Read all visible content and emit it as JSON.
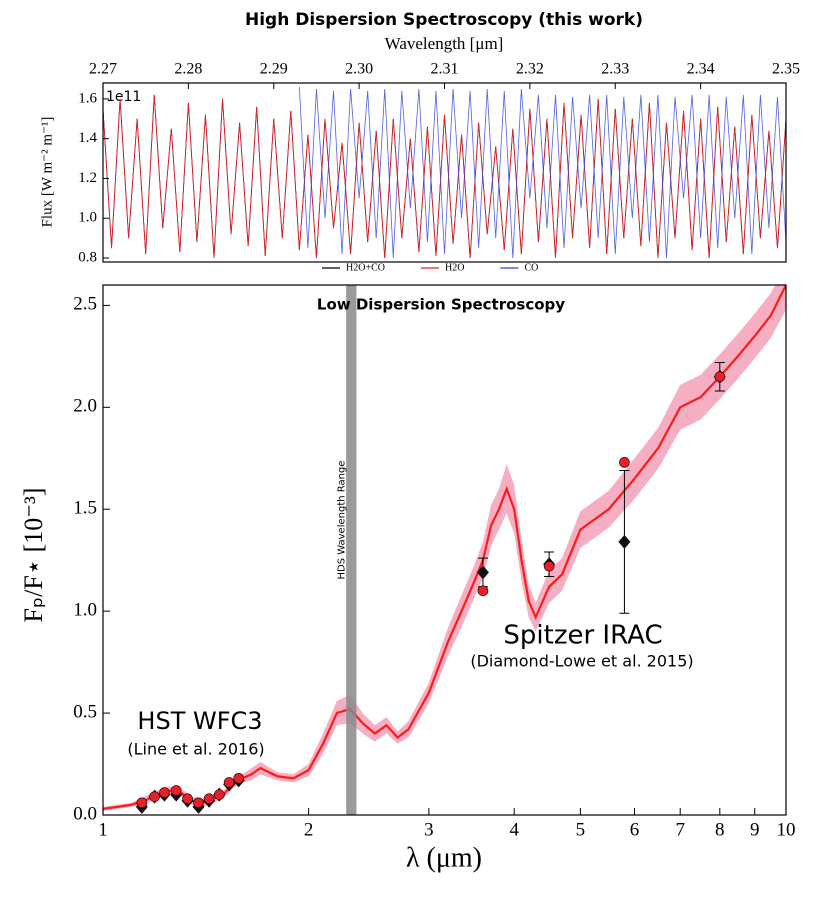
{
  "chart_data": [
    {
      "type": "line",
      "title": "High Dispersion Spectroscopy (this work)",
      "xlabel": "Wavelength [μm]",
      "ylabel": "Flux [W m⁻² m⁻¹]",
      "offset_label": "1e11",
      "xlim": [
        2.27,
        2.35
      ],
      "xticks": [
        2.27,
        2.28,
        2.29,
        {
          "value": 2.3,
          "label": "2.30"
        },
        2.31,
        2.32,
        2.33,
        2.34,
        2.35
      ],
      "ylim": [
        0.78,
        1.68
      ],
      "yticks": [
        0.8,
        {
          "value": 1.0,
          "label": "1.0"
        },
        1.2,
        1.4,
        1.6
      ],
      "x": [
        2.27,
        2.271,
        2.272,
        2.273,
        2.274,
        2.275,
        2.276,
        2.277,
        2.278,
        2.279,
        2.28,
        2.281,
        2.282,
        2.283,
        2.284,
        2.285,
        2.286,
        2.287,
        2.288,
        2.289,
        2.29,
        2.291,
        2.292,
        2.293,
        2.294,
        2.295,
        2.296,
        2.297,
        2.298,
        2.299,
        2.3,
        2.301,
        2.302,
        2.303,
        2.304,
        2.305,
        2.306,
        2.307,
        2.308,
        2.309,
        2.31,
        2.311,
        2.312,
        2.313,
        2.314,
        2.315,
        2.316,
        2.317,
        2.318,
        2.319,
        2.32,
        2.321,
        2.322,
        2.323,
        2.324,
        2.325,
        2.326,
        2.327,
        2.328,
        2.329,
        2.33,
        2.331,
        2.332,
        2.333,
        2.334,
        2.335,
        2.336,
        2.337,
        2.338,
        2.339,
        2.34,
        2.341,
        2.342,
        2.343,
        2.344,
        2.345,
        2.346,
        2.347,
        2.348,
        2.349,
        2.35
      ],
      "legend": "lower center",
      "series": [
        {
          "name": "H2O+CO",
          "color": "#000000",
          "values": [
            1.55,
            0.85,
            1.6,
            0.9,
            1.5,
            0.82,
            1.62,
            0.95,
            1.45,
            0.83,
            1.58,
            0.88,
            1.52,
            0.8,
            1.6,
            0.92,
            1.48,
            0.86,
            1.56,
            0.81,
            1.5,
            0.9,
            1.54,
            0.84,
            1.42,
            0.8,
            1.5,
            0.95,
            1.38,
            0.82,
            1.48,
            0.88,
            1.44,
            0.8,
            1.5,
            0.9,
            1.4,
            0.83,
            1.46,
            0.81,
            1.52,
            0.87,
            1.42,
            0.8,
            1.48,
            0.92,
            1.36,
            0.84,
            1.45,
            0.82,
            1.55,
            0.88,
            1.5,
            0.8,
            1.58,
            0.9,
            1.52,
            0.85,
            1.6,
            0.82,
            1.55,
            0.9,
            1.5,
            0.86,
            1.58,
            0.8,
            1.48,
            0.9,
            1.54,
            0.84,
            1.5,
            0.8,
            1.56,
            0.88,
            1.46,
            0.82,
            1.52,
            0.9,
            1.44,
            0.85,
            1.5
          ]
        },
        {
          "name": "H2O",
          "color": "#e8202a",
          "values": [
            1.55,
            0.85,
            1.6,
            0.9,
            1.5,
            0.82,
            1.62,
            0.95,
            1.45,
            0.83,
            1.58,
            0.88,
            1.52,
            0.8,
            1.6,
            0.92,
            1.48,
            0.86,
            1.56,
            0.81,
            1.5,
            0.9,
            1.54,
            0.84,
            1.42,
            0.8,
            1.5,
            0.95,
            1.38,
            0.82,
            1.48,
            0.88,
            1.44,
            0.8,
            1.5,
            0.9,
            1.4,
            0.83,
            1.46,
            0.81,
            1.52,
            0.87,
            1.42,
            0.8,
            1.48,
            0.92,
            1.36,
            0.84,
            1.45,
            0.82,
            1.55,
            0.88,
            1.5,
            0.8,
            1.58,
            0.9,
            1.52,
            0.85,
            1.6,
            0.82,
            1.55,
            0.9,
            1.5,
            0.86,
            1.58,
            0.8,
            1.48,
            0.9,
            1.54,
            0.84,
            1.5,
            0.8,
            1.56,
            0.88,
            1.46,
            0.82,
            1.52,
            0.9,
            1.44,
            0.85,
            1.5
          ]
        },
        {
          "name": "CO",
          "color": "#3344dd",
          "values": [
            null,
            null,
            null,
            null,
            null,
            null,
            null,
            null,
            null,
            null,
            null,
            null,
            null,
            null,
            null,
            null,
            null,
            null,
            null,
            null,
            null,
            null,
            null,
            1.66,
            0.85,
            1.65,
            1.0,
            1.64,
            0.82,
            1.65,
            1.1,
            1.64,
            0.9,
            1.65,
            0.8,
            1.64,
            1.05,
            1.65,
            0.88,
            1.64,
            0.82,
            1.65,
            1.0,
            1.64,
            0.85,
            1.65,
            0.9,
            1.64,
            0.8,
            1.65,
            1.1,
            1.62,
            0.95,
            1.62,
            0.85,
            1.61,
            1.05,
            1.62,
            0.9,
            1.62,
            0.82,
            1.61,
            1.0,
            1.62,
            0.88,
            1.62,
            0.8,
            1.61,
            1.1,
            1.62,
            0.9,
            1.62,
            0.85,
            1.61,
            1.0,
            1.62,
            0.82,
            1.62,
            0.95,
            1.61,
            0.88
          ]
        }
      ]
    },
    {
      "type": "line",
      "title": "Low Dispersion Spectroscopy",
      "xlabel": "λ (μm)",
      "ylabel": "Fₚ/F⋆ [10⁻³]",
      "xscale": "log",
      "xlim": [
        1,
        10
      ],
      "xticks": [
        1,
        2,
        3,
        4,
        5,
        6,
        7,
        8,
        9,
        10
      ],
      "ylim": [
        0,
        2.6
      ],
      "yticks": [
        {
          "value": 0,
          "label": "0.0"
        },
        0.5,
        {
          "value": 1.0,
          "label": "1.0"
        },
        1.5,
        {
          "value": 2.0,
          "label": "2.0"
        },
        2.5
      ],
      "hds_range": [
        2.27,
        2.35
      ],
      "hds_label": "HDS Wavelength Range",
      "annotations": [
        "HST WFC3",
        "(Line et al. 2016)",
        "Spitzer IRAC",
        "(Diamond-Lowe et al. 2015)"
      ],
      "model": {
        "color": "#ff1a1a",
        "band_color": "#f4a0b8",
        "x": [
          1,
          1.05,
          1.1,
          1.15,
          1.2,
          1.25,
          1.3,
          1.35,
          1.4,
          1.45,
          1.5,
          1.55,
          1.6,
          1.65,
          1.7,
          1.8,
          1.9,
          2.0,
          2.1,
          2.2,
          2.3,
          2.4,
          2.5,
          2.6,
          2.7,
          2.8,
          3.0,
          3.2,
          3.4,
          3.5,
          3.6,
          3.7,
          3.8,
          3.9,
          4.0,
          4.1,
          4.2,
          4.3,
          4.5,
          4.7,
          5.0,
          5.5,
          6.0,
          6.5,
          7.0,
          7.5,
          8.0,
          8.5,
          9.0,
          9.5,
          10
        ],
        "values": [
          0.03,
          0.04,
          0.05,
          0.07,
          0.1,
          0.12,
          0.11,
          0.07,
          0.06,
          0.08,
          0.1,
          0.15,
          0.18,
          0.2,
          0.23,
          0.19,
          0.18,
          0.22,
          0.35,
          0.5,
          0.52,
          0.45,
          0.4,
          0.44,
          0.38,
          0.42,
          0.6,
          0.85,
          1.05,
          1.15,
          1.25,
          1.42,
          1.5,
          1.6,
          1.5,
          1.25,
          1.05,
          0.97,
          1.12,
          1.18,
          1.4,
          1.5,
          1.65,
          1.8,
          2.0,
          2.05,
          2.15,
          2.25,
          2.35,
          2.45,
          2.6
        ],
        "lower": [
          0.02,
          0.03,
          0.04,
          0.05,
          0.08,
          0.1,
          0.09,
          0.05,
          0.04,
          0.06,
          0.08,
          0.13,
          0.16,
          0.17,
          0.2,
          0.17,
          0.16,
          0.19,
          0.3,
          0.44,
          0.45,
          0.4,
          0.36,
          0.4,
          0.35,
          0.38,
          0.55,
          0.78,
          0.97,
          1.07,
          1.16,
          1.32,
          1.4,
          1.48,
          1.38,
          1.15,
          0.97,
          0.9,
          1.04,
          1.1,
          1.31,
          1.41,
          1.55,
          1.7,
          1.89,
          1.94,
          2.04,
          2.14,
          2.24,
          2.34,
          2.48
        ],
        "upper": [
          0.04,
          0.05,
          0.06,
          0.09,
          0.12,
          0.14,
          0.13,
          0.09,
          0.08,
          0.1,
          0.12,
          0.17,
          0.2,
          0.23,
          0.26,
          0.21,
          0.2,
          0.25,
          0.4,
          0.56,
          0.59,
          0.5,
          0.44,
          0.48,
          0.41,
          0.46,
          0.65,
          0.92,
          1.13,
          1.23,
          1.34,
          1.52,
          1.6,
          1.72,
          1.62,
          1.35,
          1.13,
          1.04,
          1.2,
          1.26,
          1.49,
          1.59,
          1.75,
          1.9,
          2.11,
          2.16,
          2.26,
          2.36,
          2.46,
          2.56,
          2.7
        ]
      },
      "points": [
        {
          "marker": "diamond",
          "color": "#111111",
          "x": [
            1.14,
            1.19,
            1.23,
            1.28,
            1.33,
            1.38,
            1.43,
            1.48,
            1.53,
            1.58
          ],
          "values": [
            0.04,
            0.09,
            0.1,
            0.1,
            0.07,
            0.04,
            0.07,
            0.1,
            0.15,
            0.17
          ]
        },
        {
          "marker": "circle",
          "color": "#e8202a",
          "x": [
            1.14,
            1.19,
            1.23,
            1.28,
            1.33,
            1.38,
            1.43,
            1.48,
            1.53,
            1.58
          ],
          "values": [
            0.06,
            0.09,
            0.11,
            0.12,
            0.08,
            0.06,
            0.08,
            0.1,
            0.16,
            0.18
          ]
        },
        {
          "marker": "diamond",
          "color": "#111111",
          "x": [
            3.6,
            4.5,
            5.8,
            8.0
          ],
          "values": [
            1.19,
            1.23,
            1.34,
            2.15
          ],
          "errors": [
            0.07,
            0.06,
            0.35,
            0.07
          ]
        },
        {
          "marker": "circle",
          "color": "#e8202a",
          "x": [
            3.6,
            4.5,
            5.8,
            8.0
          ],
          "values": [
            1.1,
            1.22,
            1.73,
            2.15
          ]
        }
      ]
    }
  ]
}
